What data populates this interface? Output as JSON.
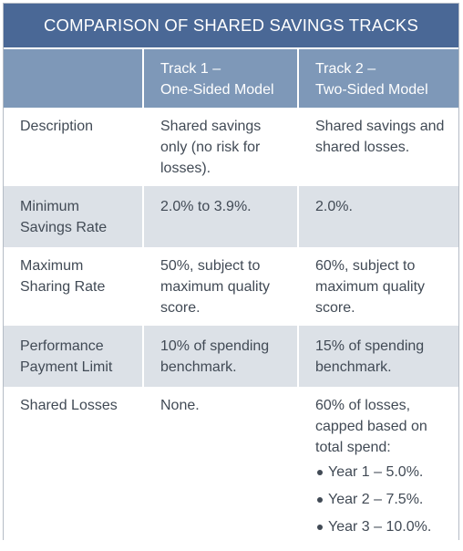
{
  "title": "COMPARISON OF SHARED SAVINGS TRACKS",
  "columns": {
    "track1": {
      "line1": "Track 1 –",
      "line2": "One-Sided Model"
    },
    "track2": {
      "line1": "Track 2 –",
      "line2": "Two-Sided Model"
    }
  },
  "rows": [
    {
      "label": "Description",
      "track1": "Shared savings only (no risk for losses).",
      "track2": "Shared savings and shared losses."
    },
    {
      "label": "Minimum Savings Rate",
      "track1": "2.0% to 3.9%.",
      "track2": "2.0%."
    },
    {
      "label": "Maximum Sharing Rate",
      "track1": "50%, subject to maximum quality score.",
      "track2": "60%, subject to maximum quality score."
    },
    {
      "label": "Performance Payment Limit",
      "track1": "10% of spending benchmark.",
      "track2": "15% of spending benchmark."
    },
    {
      "label": "Shared Losses",
      "track1": "None.",
      "track2": "60% of losses, capped based on total spend:",
      "track2_bullets": [
        "Year 1 – 5.0%.",
        "Year 2 – 7.5%.",
        "Year 3 – 10.0%."
      ]
    }
  ],
  "colors": {
    "title_bg": "#4a6896",
    "header_bg": "#7e98b8",
    "shaded_row": "#dce1e7",
    "text": "#414a55"
  }
}
